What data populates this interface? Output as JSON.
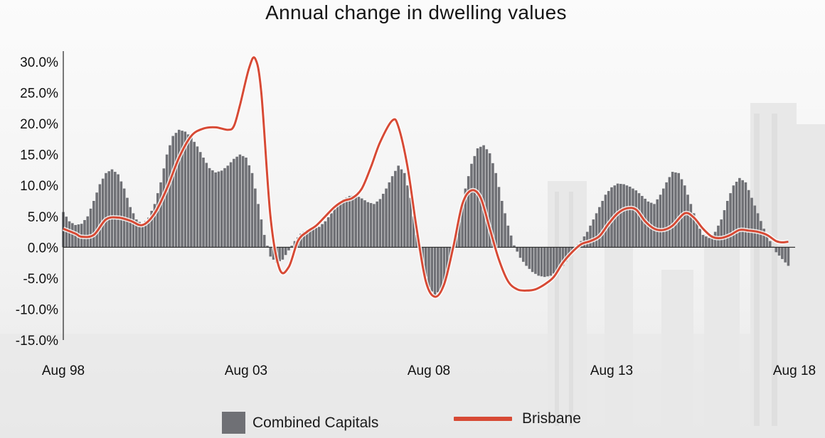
{
  "title": "Annual change in dwelling values",
  "legend": {
    "bars_label": "Combined Capitals",
    "line_label": "Brisbane"
  },
  "colors": {
    "bars": "#6f7075",
    "line": "#d74a35",
    "axis": "#222222"
  },
  "chart_data": {
    "type": "bar",
    "title": "Annual change in dwelling values",
    "xlabel": "",
    "ylabel": "",
    "ylim": [
      -15,
      30
    ],
    "y_ticks": [
      "30.0%",
      "25.0%",
      "20.0%",
      "15.0%",
      "10.0%",
      "5.0%",
      "0.0%",
      "-5.0%",
      "-10.0%",
      "-15.0%"
    ],
    "x_ticks": [
      "Aug 98",
      "Aug 03",
      "Aug 08",
      "Aug 13",
      "Aug 18"
    ],
    "x_range": [
      "Aug 98",
      "Aug 18"
    ],
    "series": [
      {
        "name": "Combined Capitals",
        "kind": "bar",
        "points": [
          [
            "1998-08",
            5.7
          ],
          [
            "1998-10",
            4.2
          ],
          [
            "1998-12",
            3.6
          ],
          [
            "1999-02",
            3.8
          ],
          [
            "1999-04",
            5.0
          ],
          [
            "1999-06",
            7.5
          ],
          [
            "1999-08",
            10.2
          ],
          [
            "1999-10",
            12.0
          ],
          [
            "1999-12",
            12.6
          ],
          [
            "2000-02",
            11.8
          ],
          [
            "2000-04",
            9.5
          ],
          [
            "2000-06",
            6.5
          ],
          [
            "2000-08",
            4.5
          ],
          [
            "2000-10",
            3.7
          ],
          [
            "2000-12",
            4.8
          ],
          [
            "2001-02",
            7.0
          ],
          [
            "2001-04",
            10.5
          ],
          [
            "2001-06",
            15.0
          ],
          [
            "2001-08",
            18.0
          ],
          [
            "2001-10",
            19.0
          ],
          [
            "2001-12",
            18.7
          ],
          [
            "2002-02",
            17.8
          ],
          [
            "2002-04",
            16.3
          ],
          [
            "2002-06",
            14.5
          ],
          [
            "2002-08",
            12.8
          ],
          [
            "2002-10",
            12.1
          ],
          [
            "2002-12",
            12.4
          ],
          [
            "2003-02",
            13.2
          ],
          [
            "2003-04",
            14.3
          ],
          [
            "2003-06",
            15.0
          ],
          [
            "2003-08",
            14.5
          ],
          [
            "2003-10",
            12.0
          ],
          [
            "2003-12",
            7.0
          ],
          [
            "2004-02",
            2.0
          ],
          [
            "2004-04",
            -1.5
          ],
          [
            "2004-06",
            -2.5
          ],
          [
            "2004-08",
            -2.0
          ],
          [
            "2004-10",
            -0.5
          ],
          [
            "2004-12",
            1.0
          ],
          [
            "2005-02",
            2.2
          ],
          [
            "2005-04",
            2.8
          ],
          [
            "2005-06",
            3.0
          ],
          [
            "2005-08",
            3.3
          ],
          [
            "2005-10",
            4.2
          ],
          [
            "2005-12",
            5.5
          ],
          [
            "2006-02",
            6.8
          ],
          [
            "2006-04",
            7.8
          ],
          [
            "2006-06",
            8.3
          ],
          [
            "2006-08",
            8.4
          ],
          [
            "2006-10",
            7.9
          ],
          [
            "2006-12",
            7.3
          ],
          [
            "2007-02",
            7.0
          ],
          [
            "2007-04",
            7.8
          ],
          [
            "2007-06",
            9.5
          ],
          [
            "2007-08",
            11.5
          ],
          [
            "2007-10",
            13.2
          ],
          [
            "2007-12",
            12.0
          ],
          [
            "2008-02",
            8.0
          ],
          [
            "2008-04",
            2.0
          ],
          [
            "2008-06",
            -3.0
          ],
          [
            "2008-08",
            -6.5
          ],
          [
            "2008-10",
            -7.8
          ],
          [
            "2008-12",
            -6.8
          ],
          [
            "2009-02",
            -4.5
          ],
          [
            "2009-04",
            0.0
          ],
          [
            "2009-06",
            4.5
          ],
          [
            "2009-08",
            9.5
          ],
          [
            "2009-10",
            13.5
          ],
          [
            "2009-12",
            16.0
          ],
          [
            "2010-02",
            16.5
          ],
          [
            "2010-04",
            15.2
          ],
          [
            "2010-06",
            12.0
          ],
          [
            "2010-08",
            7.5
          ],
          [
            "2010-10",
            3.5
          ],
          [
            "2010-12",
            0.3
          ],
          [
            "2011-02",
            -1.7
          ],
          [
            "2011-04",
            -3.0
          ],
          [
            "2011-06",
            -4.0
          ],
          [
            "2011-08",
            -4.6
          ],
          [
            "2011-10",
            -4.8
          ],
          [
            "2011-12",
            -4.6
          ],
          [
            "2012-02",
            -3.9
          ],
          [
            "2012-04",
            -3.0
          ],
          [
            "2012-06",
            -1.6
          ],
          [
            "2012-08",
            0.0
          ],
          [
            "2012-10",
            1.0
          ],
          [
            "2012-12",
            2.5
          ],
          [
            "2013-02",
            4.5
          ],
          [
            "2013-04",
            6.5
          ],
          [
            "2013-06",
            8.5
          ],
          [
            "2013-08",
            9.7
          ],
          [
            "2013-10",
            10.3
          ],
          [
            "2013-12",
            10.2
          ],
          [
            "2014-02",
            9.8
          ],
          [
            "2014-04",
            9.2
          ],
          [
            "2014-06",
            8.3
          ],
          [
            "2014-08",
            7.4
          ],
          [
            "2014-10",
            7.0
          ],
          [
            "2014-12",
            8.5
          ],
          [
            "2015-02",
            10.5
          ],
          [
            "2015-04",
            12.2
          ],
          [
            "2015-06",
            12.0
          ],
          [
            "2015-08",
            10.0
          ],
          [
            "2015-10",
            7.0
          ],
          [
            "2015-12",
            4.0
          ],
          [
            "2016-02",
            2.0
          ],
          [
            "2016-04",
            1.5
          ],
          [
            "2016-06",
            2.5
          ],
          [
            "2016-08",
            4.5
          ],
          [
            "2016-10",
            7.5
          ],
          [
            "2016-12",
            10.0
          ],
          [
            "2017-02",
            11.2
          ],
          [
            "2017-04",
            10.5
          ],
          [
            "2017-06",
            8.0
          ],
          [
            "2017-08",
            5.5
          ],
          [
            "2017-10",
            3.0
          ],
          [
            "2017-12",
            1.0
          ],
          [
            "2018-02",
            -0.8
          ],
          [
            "2018-04",
            -1.9
          ],
          [
            "2018-06",
            -3.0
          ]
        ]
      },
      {
        "name": "Brisbane",
        "kind": "line",
        "points": [
          [
            "1998-08",
            3.0
          ],
          [
            "1998-12",
            2.2
          ],
          [
            "1999-02",
            1.7
          ],
          [
            "1999-06",
            2.0
          ],
          [
            "1999-10",
            4.5
          ],
          [
            "2000-02",
            4.8
          ],
          [
            "2000-06",
            4.3
          ],
          [
            "2000-10",
            3.6
          ],
          [
            "2001-02",
            5.5
          ],
          [
            "2001-06",
            9.5
          ],
          [
            "2001-10",
            14.5
          ],
          [
            "2002-02",
            18.0
          ],
          [
            "2002-06",
            19.2
          ],
          [
            "2002-10",
            19.4
          ],
          [
            "2003-02",
            19.0
          ],
          [
            "2003-04",
            19.6
          ],
          [
            "2003-06",
            23.0
          ],
          [
            "2003-09",
            29.0
          ],
          [
            "2003-11",
            30.5
          ],
          [
            "2004-01",
            25.0
          ],
          [
            "2004-04",
            5.0
          ],
          [
            "2004-07",
            -3.5
          ],
          [
            "2004-10",
            -3.2
          ],
          [
            "2005-01",
            1.0
          ],
          [
            "2005-04",
            2.5
          ],
          [
            "2005-07",
            3.5
          ],
          [
            "2005-10",
            5.0
          ],
          [
            "2006-01",
            6.5
          ],
          [
            "2006-04",
            7.5
          ],
          [
            "2006-07",
            8.0
          ],
          [
            "2006-10",
            9.5
          ],
          [
            "2007-01",
            13.0
          ],
          [
            "2007-04",
            17.0
          ],
          [
            "2007-08",
            20.5
          ],
          [
            "2007-10",
            19.5
          ],
          [
            "2008-01",
            13.0
          ],
          [
            "2008-04",
            3.0
          ],
          [
            "2008-07",
            -5.5
          ],
          [
            "2008-10",
            -8.0
          ],
          [
            "2009-01",
            -6.0
          ],
          [
            "2009-04",
            0.0
          ],
          [
            "2009-07",
            7.0
          ],
          [
            "2009-10",
            9.2
          ],
          [
            "2010-01",
            8.0
          ],
          [
            "2010-04",
            3.0
          ],
          [
            "2010-07",
            -2.0
          ],
          [
            "2010-10",
            -5.5
          ],
          [
            "2011-01",
            -6.8
          ],
          [
            "2011-04",
            -7.0
          ],
          [
            "2011-07",
            -6.8
          ],
          [
            "2011-10",
            -6.0
          ],
          [
            "2012-01",
            -4.8
          ],
          [
            "2012-04",
            -2.5
          ],
          [
            "2012-07",
            -0.8
          ],
          [
            "2012-10",
            0.5
          ],
          [
            "2013-01",
            1.0
          ],
          [
            "2013-04",
            1.8
          ],
          [
            "2013-07",
            3.8
          ],
          [
            "2013-10",
            5.5
          ],
          [
            "2014-01",
            6.3
          ],
          [
            "2014-04",
            6.1
          ],
          [
            "2014-07",
            4.2
          ],
          [
            "2014-10",
            3.0
          ],
          [
            "2015-01",
            2.8
          ],
          [
            "2015-04",
            3.5
          ],
          [
            "2015-08",
            5.5
          ],
          [
            "2015-11",
            4.8
          ],
          [
            "2016-02",
            3.0
          ],
          [
            "2016-05",
            1.7
          ],
          [
            "2016-08",
            1.5
          ],
          [
            "2016-11",
            2.0
          ],
          [
            "2017-02",
            2.8
          ],
          [
            "2017-05",
            2.7
          ],
          [
            "2017-08",
            2.5
          ],
          [
            "2017-11",
            2.0
          ],
          [
            "2018-02",
            1.0
          ],
          [
            "2018-04",
            0.8
          ],
          [
            "2018-06",
            0.9
          ]
        ]
      }
    ],
    "grid": false,
    "legend_position": "bottom"
  }
}
